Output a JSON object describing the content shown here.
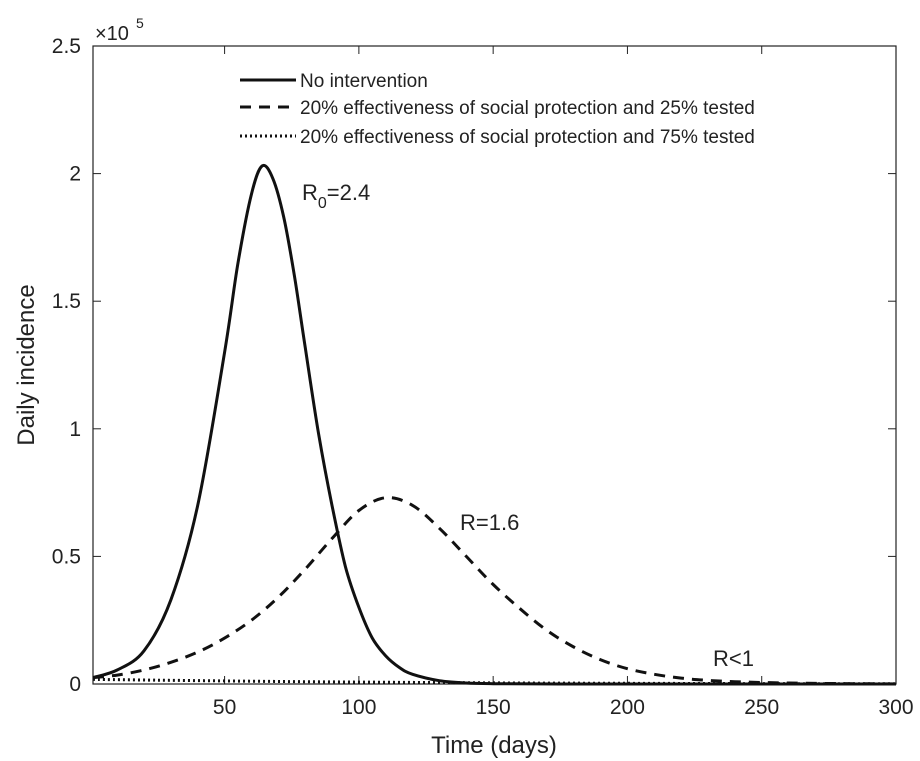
{
  "chart_data": {
    "type": "line",
    "title": "",
    "xlabel": "Time (days)",
    "ylabel": "Daily incidence",
    "y_multiplier": "×10",
    "y_multiplier_exp": "5",
    "xlim": [
      1,
      300
    ],
    "ylim": [
      0,
      250000
    ],
    "x_ticks": [
      50,
      100,
      150,
      200,
      250,
      300
    ],
    "y_ticks": [
      0,
      50000,
      100000,
      150000,
      200000,
      250000
    ],
    "y_tick_labels": [
      "0",
      "0.5",
      "1",
      "1.5",
      "2",
      "2.5"
    ],
    "x_tick_labels": [
      "50",
      "100",
      "150",
      "200",
      "250",
      "300"
    ],
    "grid": false,
    "legend_position": "top-center",
    "series": [
      {
        "name": "No intervention",
        "style": "solid",
        "x": [
          1,
          10,
          20,
          30,
          40,
          50,
          55,
          60,
          64,
          68,
          72,
          76,
          80,
          85,
          90,
          95,
          100,
          105,
          110,
          115,
          120,
          130,
          140,
          150,
          175,
          200,
          250,
          300
        ],
        "values": [
          2500,
          5500,
          13000,
          33000,
          70000,
          130000,
          165000,
          192000,
          203000,
          198000,
          183000,
          160000,
          132000,
          98000,
          70000,
          46000,
          30000,
          18000,
          11000,
          6500,
          3800,
          1300,
          400,
          120,
          0,
          0,
          0,
          0
        ]
      },
      {
        "name": "20% effectiveness of social protection and 25% tested",
        "style": "dashed",
        "x": [
          1,
          10,
          20,
          30,
          40,
          50,
          60,
          70,
          80,
          90,
          100,
          110,
          120,
          130,
          140,
          150,
          160,
          170,
          180,
          190,
          200,
          210,
          220,
          230,
          240,
          250,
          260,
          280,
          300
        ],
        "values": [
          2500,
          3500,
          5500,
          8500,
          12500,
          18000,
          25000,
          34000,
          45000,
          57000,
          68000,
          73000,
          70000,
          61000,
          50000,
          39000,
          29500,
          21000,
          14500,
          9500,
          6000,
          3800,
          2300,
          1400,
          900,
          600,
          400,
          150,
          50
        ]
      },
      {
        "name": "20% effectiveness of social protection and 75% tested",
        "style": "dotted",
        "x": [
          1,
          25,
          50,
          75,
          100,
          125,
          150,
          175,
          200,
          225,
          250,
          275,
          300
        ],
        "values": [
          1800,
          1500,
          1200,
          950,
          750,
          580,
          450,
          340,
          260,
          200,
          150,
          110,
          80
        ]
      }
    ],
    "annotations": [
      {
        "text": "R",
        "sub": "0",
        "rest": "=2.4",
        "x": 68,
        "y": 195000
      },
      {
        "text": "R=1.6",
        "x": 133,
        "y": 62000
      },
      {
        "text": "R<1",
        "x": 232,
        "y": 9000
      }
    ]
  }
}
